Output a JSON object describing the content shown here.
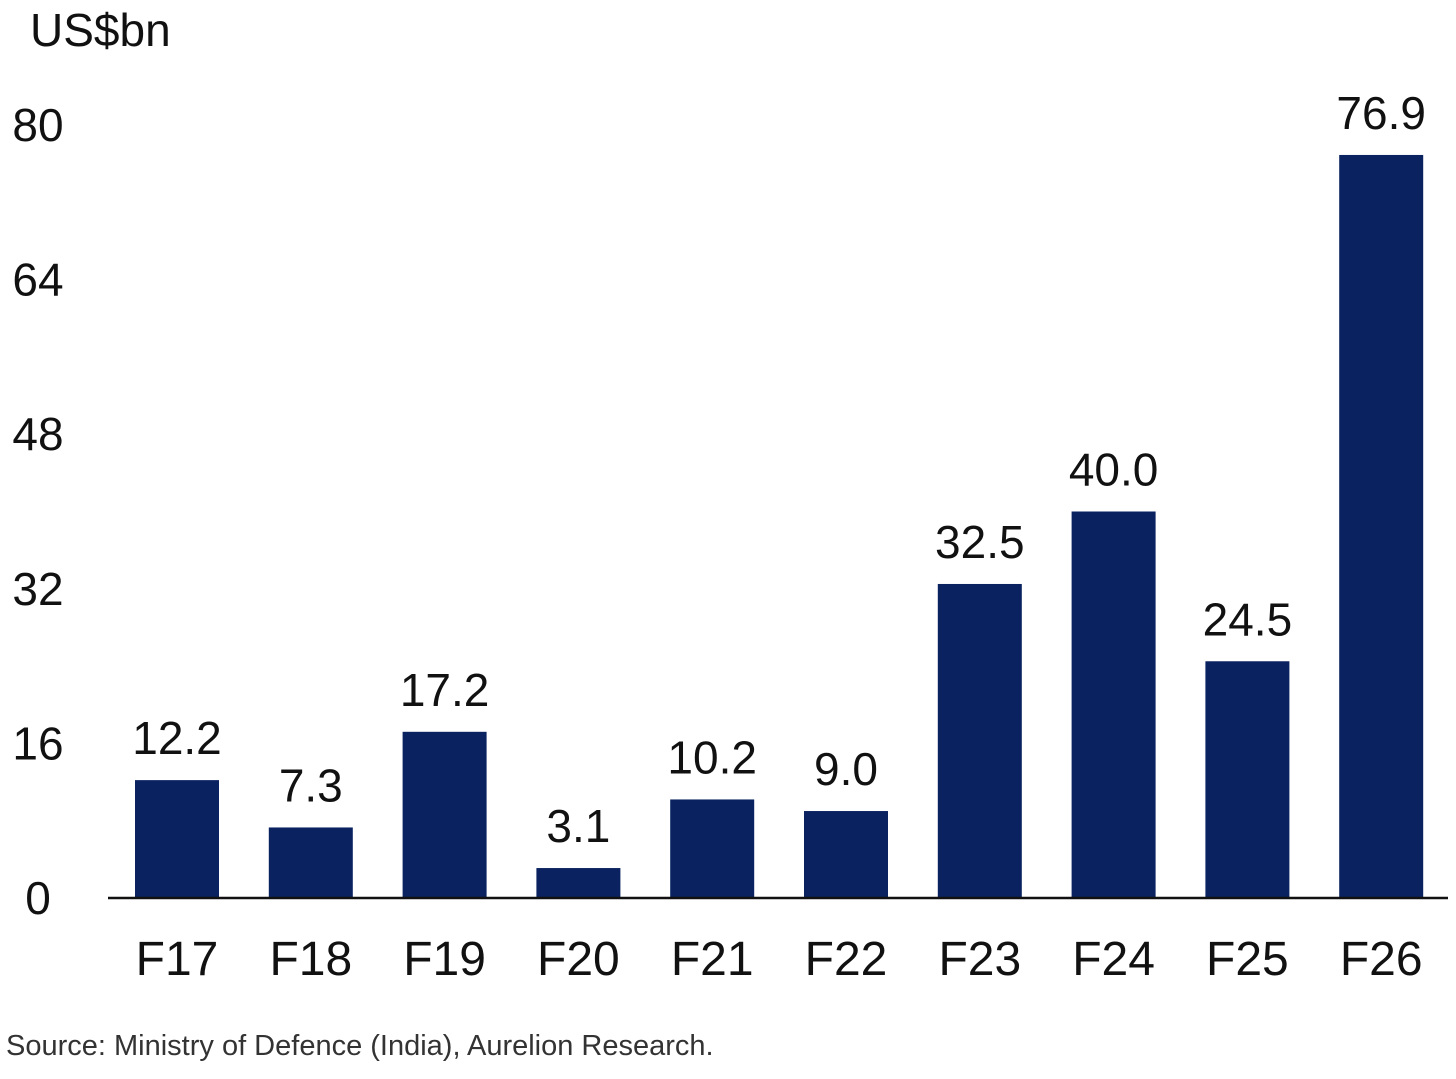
{
  "chart_data": {
    "type": "bar",
    "unit_label": "US$bn",
    "categories": [
      "F17",
      "F18",
      "F19",
      "F20",
      "F21",
      "F22",
      "F23",
      "F24",
      "F25",
      "F26"
    ],
    "values": [
      12.2,
      7.3,
      17.2,
      3.1,
      10.2,
      9.0,
      32.5,
      40.0,
      24.5,
      76.9
    ],
    "value_labels": [
      "12.2",
      "7.3",
      "17.2",
      "3.1",
      "10.2",
      "9.0",
      "32.5",
      "40.0",
      "24.5",
      "76.9"
    ],
    "y_ticks": [
      "0",
      "16",
      "32",
      "48",
      "64",
      "80"
    ],
    "ylim": [
      0,
      80
    ],
    "grid": false,
    "bar_color": "#0a2260"
  },
  "source": "Source: Ministry of Defence (India), Aurelion Research."
}
